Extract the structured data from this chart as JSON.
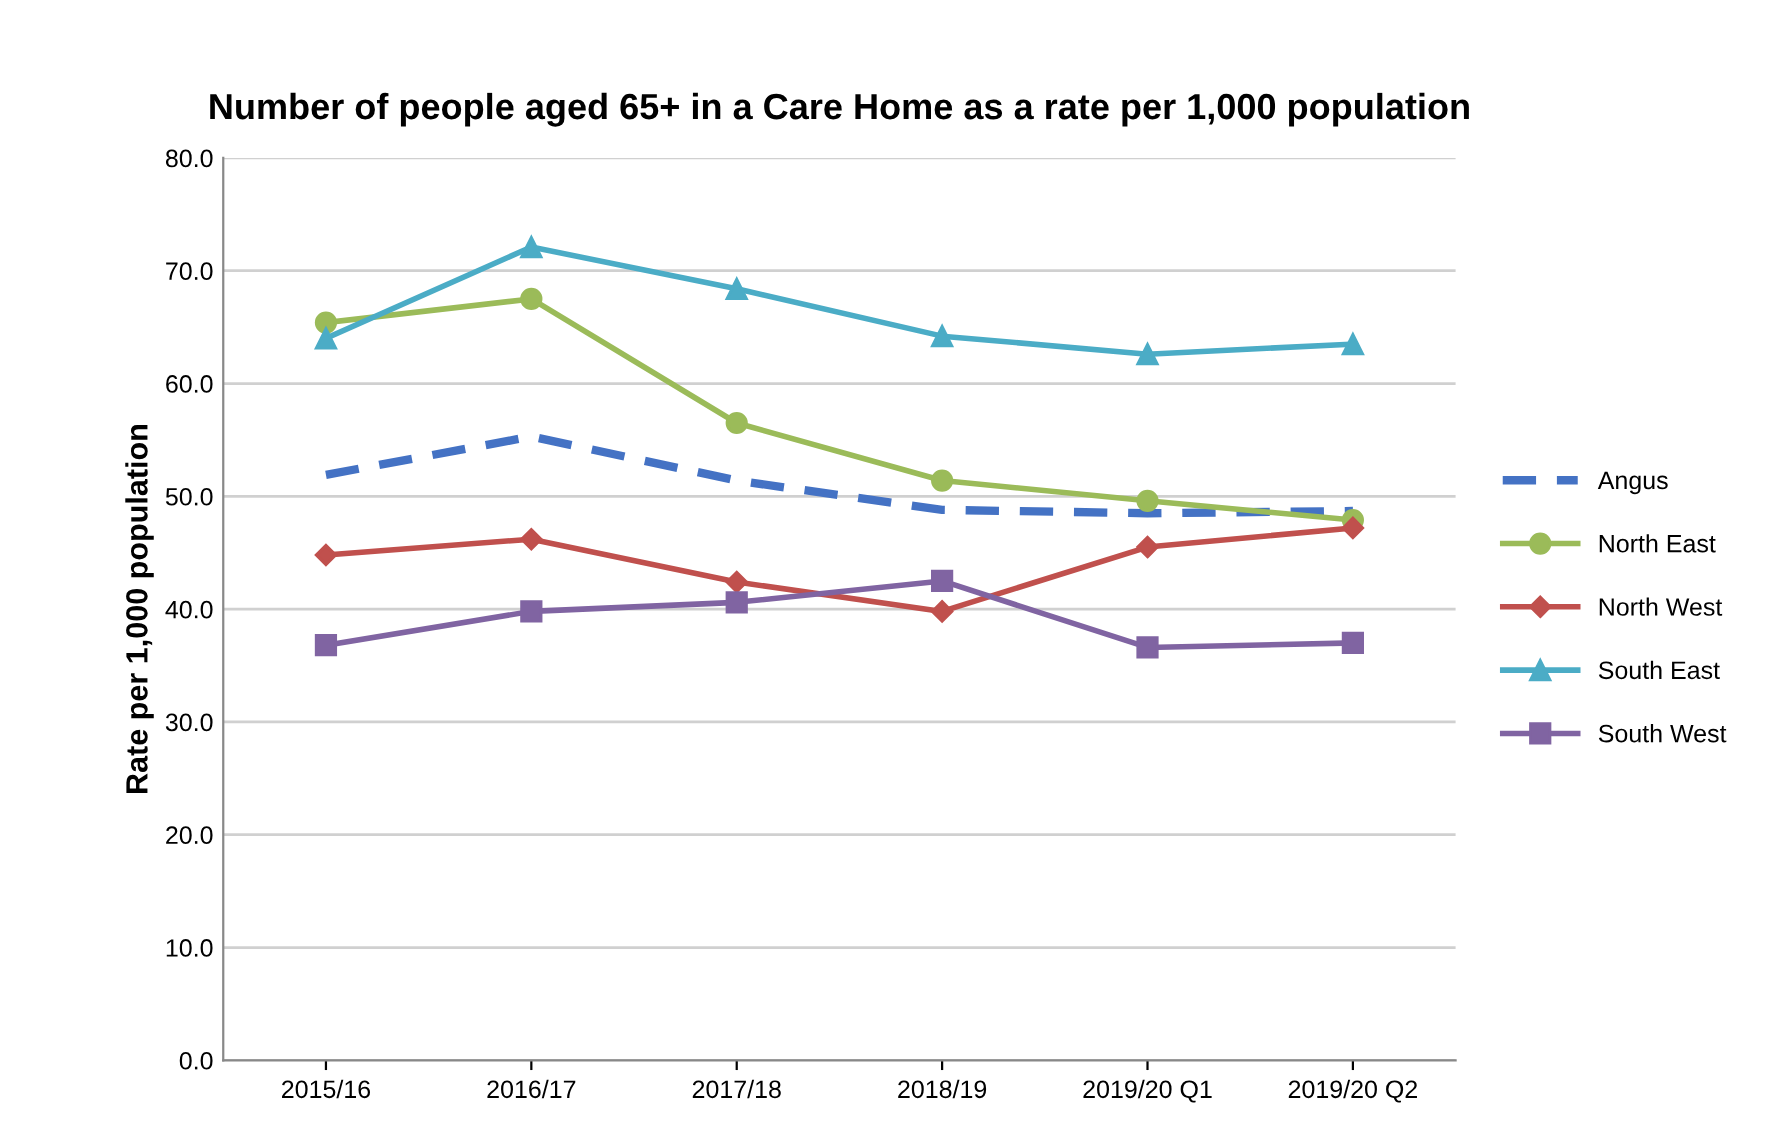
{
  "chart_data": {
    "type": "line",
    "title": "Number of people aged 65+ in a Care Home as a rate per 1,000 population",
    "ylabel": "Rate per 1,000 population",
    "categories": [
      "2015/16",
      "2016/17",
      "2017/18",
      "2018/19",
      "2019/20 Q1",
      "2019/20 Q2"
    ],
    "series": [
      {
        "name": "Angus",
        "color": "#4472c4",
        "line_style": "dashed",
        "marker": "none",
        "values": [
          51.9,
          55.3,
          51.4,
          48.8,
          48.5,
          48.7
        ]
      },
      {
        "name": "North East",
        "color": "#9bbb59",
        "line_style": "solid",
        "marker": "circle",
        "values": [
          65.4,
          67.5,
          56.5,
          51.4,
          49.6,
          47.9
        ]
      },
      {
        "name": "North West",
        "color": "#c0504d",
        "line_style": "solid",
        "marker": "diamond",
        "values": [
          44.8,
          46.2,
          42.4,
          39.8,
          45.5,
          47.2
        ]
      },
      {
        "name": "South East",
        "color": "#4bacc6",
        "line_style": "solid",
        "marker": "triangle",
        "values": [
          64.0,
          72.1,
          68.4,
          64.2,
          62.6,
          63.5
        ]
      },
      {
        "name": "South West",
        "color": "#8064a2",
        "line_style": "solid",
        "marker": "square",
        "values": [
          36.8,
          39.8,
          40.6,
          42.5,
          36.6,
          37.0
        ]
      }
    ],
    "ylim": [
      0,
      80
    ],
    "yticks": [
      {
        "value": 0,
        "label": "0.0"
      },
      {
        "value": 10,
        "label": "10.0"
      },
      {
        "value": 20,
        "label": "20.0"
      },
      {
        "value": 30,
        "label": "30.0"
      },
      {
        "value": 40,
        "label": "40.0"
      },
      {
        "value": 50,
        "label": "50.0"
      },
      {
        "value": 60,
        "label": "60.0"
      },
      {
        "value": 70,
        "label": "70.0"
      },
      {
        "value": 80,
        "label": "80.0"
      }
    ],
    "grid": "y",
    "legend": "right"
  }
}
